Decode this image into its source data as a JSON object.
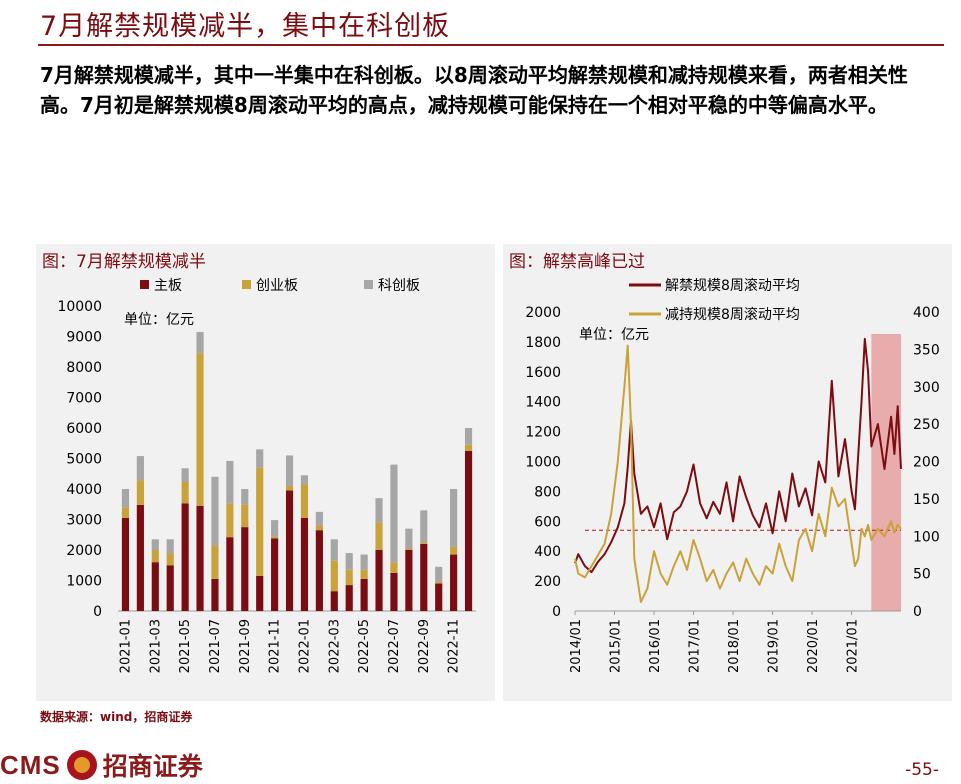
{
  "slide": {
    "title": "7月解禁规模减半，集中在科创板",
    "summary": "7月解禁规模减半，其中一半集中在科创板。以8周滚动平均解禁规模和减持规模来看，两者相关性高。7月初是解禁规模8周滚动平均的高点，减持规模可能保持在一个相对平稳的中等偏高水平。",
    "source": "数据来源：wind，招商证券",
    "logo_text": "CMS",
    "logo_cn": "招商证券",
    "page_number": "-55-"
  },
  "colors": {
    "main_board": "#7b0c12",
    "chinext": "#c9a23a",
    "star": "#a6a6a6",
    "unlock_line": "#7b0c12",
    "reduce_line": "#c9a23a",
    "peak_band": "#e8a0a0",
    "ref_line": "#b01515"
  },
  "chart_data": [
    {
      "type": "bar",
      "stacked": true,
      "title": "图：7月解禁规模减半",
      "unit_note": "单位：亿元",
      "categories": [
        "2021-01",
        "2021-02",
        "2021-03",
        "2021-04",
        "2021-05",
        "2021-06",
        "2021-07",
        "2021-08",
        "2021-09",
        "2021-10",
        "2021-11",
        "2021-12",
        "2022-01",
        "2022-02",
        "2022-03",
        "2022-04",
        "2022-05",
        "2022-06",
        "2022-07",
        "2022-08",
        "2022-09",
        "2022-10",
        "2022-11",
        "2022-12"
      ],
      "tick_labels": [
        "2021-01",
        "2021-03",
        "2021-05",
        "2021-07",
        "2021-09",
        "2021-11",
        "2022-01",
        "2022-03",
        "2022-05",
        "2022-07",
        "2022-09",
        "2022-11"
      ],
      "series": [
        {
          "name": "主板",
          "values": [
            3050,
            3480,
            1600,
            1500,
            3530,
            3450,
            1050,
            2420,
            2750,
            1150,
            2380,
            3950,
            3050,
            2650,
            650,
            850,
            1050,
            2000,
            1250,
            2000,
            2200,
            900,
            1850,
            5250
          ]
        },
        {
          "name": "创业板",
          "values": [
            350,
            800,
            400,
            400,
            700,
            5000,
            1100,
            1100,
            750,
            3550,
            50,
            150,
            1100,
            150,
            1000,
            500,
            300,
            900,
            350,
            50,
            50,
            50,
            250,
            200
          ]
        },
        {
          "name": "科创板",
          "values": [
            600,
            800,
            350,
            450,
            450,
            700,
            2250,
            1400,
            500,
            600,
            550,
            1000,
            300,
            450,
            700,
            550,
            500,
            800,
            3200,
            650,
            1050,
            500,
            1900,
            550
          ]
        }
      ],
      "ylim": [
        0,
        10000
      ],
      "yticks": [
        0,
        1000,
        2000,
        3000,
        4000,
        5000,
        6000,
        7000,
        8000,
        9000,
        10000
      ],
      "legend_position": "top"
    },
    {
      "type": "line",
      "title": "图：解禁高峰已过",
      "unit_note": "单位：亿元",
      "x_ticks": [
        "2014/01",
        "2015/01",
        "2016/01",
        "2017/01",
        "2018/01",
        "2019/01",
        "2020/01",
        "2021/01"
      ],
      "x_range": [
        "2014-01",
        "2022-04"
      ],
      "series": [
        {
          "name": "解禁规模8周滚动平均",
          "axis": "left",
          "points": [
            [
              "2014-01",
              320
            ],
            [
              "2014-02",
              380
            ],
            [
              "2014-04",
              300
            ],
            [
              "2014-06",
              260
            ],
            [
              "2014-08",
              330
            ],
            [
              "2014-10",
              380
            ],
            [
              "2014-12",
              460
            ],
            [
              "2015-02",
              560
            ],
            [
              "2015-04",
              720
            ],
            [
              "2015-05",
              960
            ],
            [
              "2015-06",
              1270
            ],
            [
              "2015-07",
              920
            ],
            [
              "2015-09",
              650
            ],
            [
              "2015-11",
              700
            ],
            [
              "2016-01",
              560
            ],
            [
              "2016-03",
              720
            ],
            [
              "2016-05",
              480
            ],
            [
              "2016-07",
              660
            ],
            [
              "2016-09",
              700
            ],
            [
              "2016-11",
              800
            ],
            [
              "2017-01",
              980
            ],
            [
              "2017-03",
              720
            ],
            [
              "2017-05",
              620
            ],
            [
              "2017-07",
              730
            ],
            [
              "2017-09",
              650
            ],
            [
              "2017-11",
              860
            ],
            [
              "2018-01",
              600
            ],
            [
              "2018-03",
              900
            ],
            [
              "2018-05",
              760
            ],
            [
              "2018-07",
              640
            ],
            [
              "2018-09",
              560
            ],
            [
              "2018-11",
              720
            ],
            [
              "2019-01",
              520
            ],
            [
              "2019-03",
              800
            ],
            [
              "2019-05",
              600
            ],
            [
              "2019-07",
              920
            ],
            [
              "2019-09",
              700
            ],
            [
              "2019-11",
              820
            ],
            [
              "2020-01",
              640
            ],
            [
              "2020-03",
              1000
            ],
            [
              "2020-05",
              860
            ],
            [
              "2020-07",
              1540
            ],
            [
              "2020-09",
              900
            ],
            [
              "2020-11",
              1150
            ],
            [
              "2021-01",
              800
            ],
            [
              "2021-02",
              680
            ],
            [
              "2021-04",
              1400
            ],
            [
              "2021-05",
              1820
            ],
            [
              "2021-06",
              1600
            ],
            [
              "2021-07",
              1100
            ],
            [
              "2021-09",
              1250
            ],
            [
              "2021-11",
              950
            ],
            [
              "2022-01",
              1300
            ],
            [
              "2022-02",
              1050
            ],
            [
              "2022-03",
              1370
            ],
            [
              "2022-04",
              950
            ]
          ]
        },
        {
          "name": "减持规模8周滚动平均",
          "axis": "right",
          "points": [
            [
              "2014-01",
              70
            ],
            [
              "2014-02",
              50
            ],
            [
              "2014-04",
              45
            ],
            [
              "2014-06",
              60
            ],
            [
              "2014-08",
              75
            ],
            [
              "2014-10",
              90
            ],
            [
              "2014-12",
              130
            ],
            [
              "2015-02",
              200
            ],
            [
              "2015-04",
              300
            ],
            [
              "2015-05",
              355
            ],
            [
              "2015-06",
              250
            ],
            [
              "2015-07",
              70
            ],
            [
              "2015-09",
              12
            ],
            [
              "2015-11",
              30
            ],
            [
              "2016-01",
              80
            ],
            [
              "2016-03",
              50
            ],
            [
              "2016-05",
              35
            ],
            [
              "2016-07",
              60
            ],
            [
              "2016-09",
              80
            ],
            [
              "2016-11",
              55
            ],
            [
              "2017-01",
              95
            ],
            [
              "2017-03",
              70
            ],
            [
              "2017-05",
              40
            ],
            [
              "2017-07",
              55
            ],
            [
              "2017-09",
              30
            ],
            [
              "2017-11",
              50
            ],
            [
              "2018-01",
              65
            ],
            [
              "2018-03",
              40
            ],
            [
              "2018-05",
              70
            ],
            [
              "2018-07",
              50
            ],
            [
              "2018-09",
              35
            ],
            [
              "2018-11",
              60
            ],
            [
              "2019-01",
              50
            ],
            [
              "2019-03",
              90
            ],
            [
              "2019-05",
              60
            ],
            [
              "2019-07",
              40
            ],
            [
              "2019-09",
              95
            ],
            [
              "2019-11",
              110
            ],
            [
              "2020-01",
              80
            ],
            [
              "2020-03",
              130
            ],
            [
              "2020-05",
              100
            ],
            [
              "2020-07",
              165
            ],
            [
              "2020-09",
              140
            ],
            [
              "2020-11",
              150
            ],
            [
              "2021-01",
              90
            ],
            [
              "2021-02",
              60
            ],
            [
              "2021-03",
              70
            ],
            [
              "2021-04",
              110
            ],
            [
              "2021-05",
              100
            ],
            [
              "2021-06",
              115
            ],
            [
              "2021-07",
              95
            ],
            [
              "2021-09",
              110
            ],
            [
              "2021-11",
              100
            ],
            [
              "2022-01",
              120
            ],
            [
              "2022-02",
              105
            ],
            [
              "2022-03",
              115
            ],
            [
              "2022-04",
              110
            ]
          ]
        }
      ],
      "ylim_left": [
        0,
        2000
      ],
      "yticks_left": [
        0,
        200,
        400,
        600,
        800,
        1000,
        1200,
        1400,
        1600,
        1800,
        2000
      ],
      "ylim_right": [
        0,
        400
      ],
      "yticks_right": [
        0,
        50,
        100,
        150,
        200,
        250,
        300,
        350,
        400
      ],
      "reference_line_left": 540,
      "highlight_range": [
        "2021-07",
        "2022-04"
      ],
      "legend_position": "top"
    }
  ]
}
